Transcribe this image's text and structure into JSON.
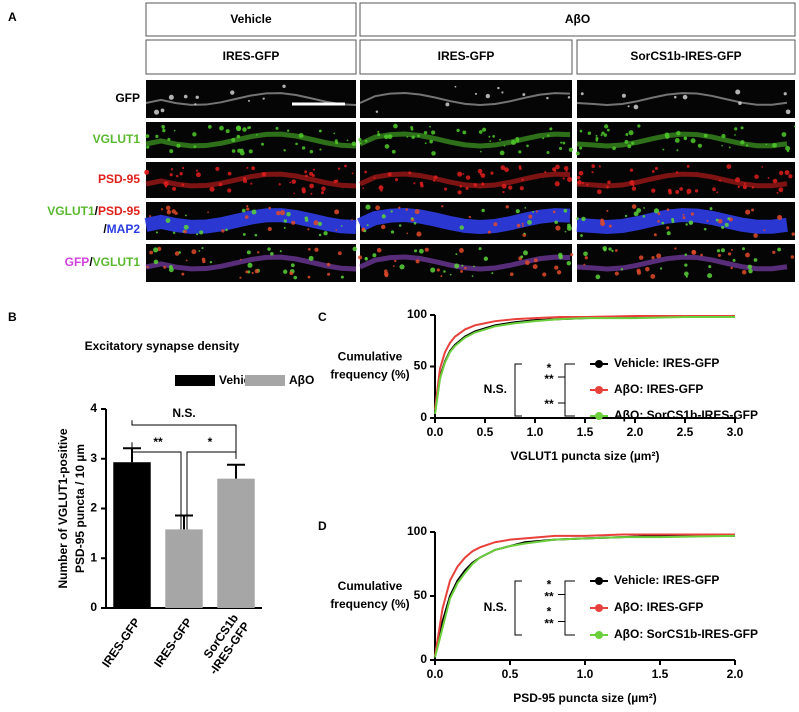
{
  "panel_a": {
    "label": "A",
    "headers": [
      "Vehicle",
      "AβO"
    ],
    "subheaders": [
      "IRES-GFP",
      "IRES-GFP",
      "SorCS1b-IRES-GFP"
    ],
    "rows": [
      {
        "lines": [
          [
            {
              "text": "GFP",
              "color": "#000000"
            }
          ]
        ]
      },
      {
        "lines": [
          [
            {
              "text": "VGLUT1",
              "color": "#5ab82e"
            }
          ]
        ]
      },
      {
        "lines": [
          [
            {
              "text": "PSD-95",
              "color": "#e0201b"
            }
          ]
        ]
      },
      {
        "lines": [
          [
            {
              "text": "VGLUT1",
              "color": "#5ab82e"
            },
            {
              "text": "/",
              "color": "#000000"
            },
            {
              "text": "PSD-95",
              "color": "#e0201b"
            }
          ],
          [
            {
              "text": "/",
              "color": "#000000"
            },
            {
              "text": "MAP2",
              "color": "#2a3de0"
            }
          ]
        ]
      },
      {
        "lines": [
          [
            {
              "text": "GFP",
              "color": "#d040e0"
            },
            {
              "text": "/",
              "color": "#000000"
            },
            {
              "text": "VGLUT1",
              "color": "#5ab82e"
            }
          ]
        ]
      }
    ]
  },
  "chart_data": [
    {
      "type": "bar",
      "label": "B",
      "title": "Excitatory synapse density",
      "categories": [
        "IRES-GFP",
        "IRES-GFP",
        "SorCS1b\n-IRES-GFP"
      ],
      "values": [
        2.93,
        1.58,
        2.6
      ],
      "errors": [
        0.28,
        0.28,
        0.28
      ],
      "colors": [
        "#000000",
        "#a6a6a6",
        "#a6a6a6"
      ],
      "legend": [
        {
          "name": "Vehicle",
          "color": "#000000"
        },
        {
          "name": "AβO",
          "color": "#a6a6a6"
        }
      ],
      "ylabel": [
        "Number of VGLUT1-positive",
        "PSD-95 puncta / 10 µm"
      ],
      "ylim": [
        0,
        4
      ],
      "yticks": [
        0,
        1,
        2,
        3,
        4
      ],
      "annotations": [
        "**",
        "*",
        "N.S."
      ]
    },
    {
      "type": "line",
      "label": "C",
      "xlabel": "VGLUT1 puncta size (µm²)",
      "ylabel": [
        "Cumulative",
        "frequency (%)"
      ],
      "x": [
        0,
        0.05,
        0.1,
        0.15,
        0.2,
        0.3,
        0.4,
        0.5,
        0.6,
        0.8,
        1.0,
        1.25,
        1.5,
        2.0,
        2.5,
        3.0
      ],
      "series": [
        {
          "name": "Vehicle: IRES-GFP",
          "color": "#000000",
          "values": [
            5,
            40,
            55,
            65,
            71,
            79,
            84,
            87,
            90,
            93,
            95,
            96,
            97,
            98,
            98,
            98
          ]
        },
        {
          "name": "AβO: IRES-GFP",
          "color": "#e8413c",
          "values": [
            8,
            48,
            64,
            73,
            79,
            86,
            90,
            92,
            94,
            96,
            97,
            98,
            98,
            99,
            99,
            99
          ]
        },
        {
          "name": "AβO: SorCS1b-IRES-GFP",
          "color": "#6ccf3c",
          "values": [
            4,
            38,
            54,
            64,
            70,
            78,
            83,
            86,
            89,
            92,
            94,
            96,
            97,
            97,
            98,
            98
          ]
        }
      ],
      "xlim": [
        0,
        3
      ],
      "xticks": [
        {
          "value": 0,
          "label": "0.0"
        },
        0.5,
        {
          "value": 1,
          "label": "1.0"
        },
        1.5,
        {
          "value": 2,
          "label": "2.0"
        },
        2.5,
        {
          "value": 3,
          "label": "3.0"
        }
      ],
      "ylim": [
        0,
        100
      ],
      "yticks": [
        0,
        50,
        100
      ],
      "annotations": [
        "N.S.",
        "*",
        "**",
        "**"
      ]
    },
    {
      "type": "line",
      "label": "D",
      "xlabel": "PSD-95 puncta size (µm²)",
      "ylabel": [
        "Cumulative",
        "frequency (%)"
      ],
      "x": [
        0,
        0.05,
        0.1,
        0.15,
        0.2,
        0.25,
        0.3,
        0.4,
        0.5,
        0.6,
        0.8,
        1.0,
        1.25,
        1.5,
        2.0
      ],
      "series": [
        {
          "name": "Vehicle: IRES-GFP",
          "color": "#000000",
          "values": [
            3,
            30,
            50,
            62,
            70,
            76,
            80,
            86,
            89,
            92,
            94,
            95,
            96,
            97,
            97
          ]
        },
        {
          "name": "AβO: IRES-GFP",
          "color": "#e8413c",
          "values": [
            3,
            40,
            62,
            73,
            80,
            85,
            88,
            92,
            94,
            95,
            97,
            97,
            98,
            98,
            98
          ]
        },
        {
          "name": "AβO: SorCS1b-IRES-GFP",
          "color": "#6ccf3c",
          "values": [
            2,
            25,
            48,
            60,
            68,
            75,
            80,
            86,
            89,
            91,
            94,
            95,
            96,
            96,
            97
          ]
        }
      ],
      "xlim": [
        0,
        2
      ],
      "xticks": [
        {
          "value": 0,
          "label": "0.0"
        },
        0.5,
        {
          "value": 1,
          "label": "1.0"
        },
        1.5,
        {
          "value": 2,
          "label": "2.0"
        }
      ],
      "ylim": [
        0,
        100
      ],
      "yticks": [
        0,
        50,
        100
      ],
      "annotations": [
        "N.S.",
        "*",
        "**",
        "*",
        "**"
      ]
    }
  ]
}
